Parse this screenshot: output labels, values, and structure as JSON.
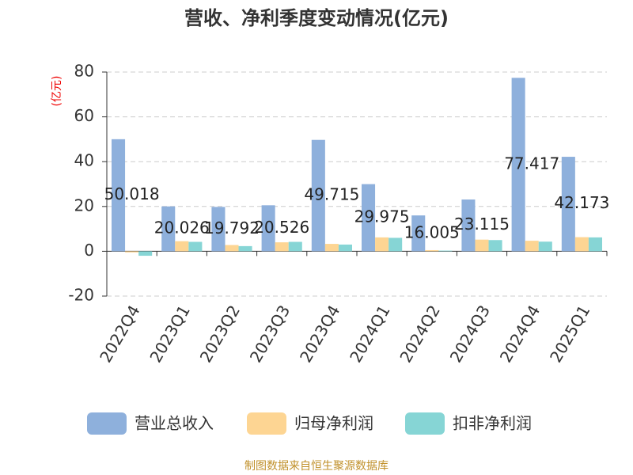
{
  "chart_data": {
    "type": "bar",
    "title": "营收、净利季度变动情况(亿元)",
    "y_unit": "(亿元)",
    "categories": [
      "2022Q4",
      "2023Q1",
      "2023Q2",
      "2023Q3",
      "2023Q4",
      "2024Q1",
      "2024Q2",
      "2024Q3",
      "2024Q4",
      "2025Q1"
    ],
    "series": [
      {
        "name": "营业总收入",
        "color": "#8eb0dc",
        "values": [
          50.018,
          20.026,
          19.792,
          20.526,
          49.715,
          29.975,
          16.005,
          23.115,
          77.417,
          42.173
        ],
        "show_labels": true
      },
      {
        "name": "归母净利润",
        "color": "#fdd593",
        "values": [
          -0.5,
          4.5,
          2.8,
          4.0,
          3.3,
          6.2,
          0.5,
          5.2,
          4.7,
          6.3
        ]
      },
      {
        "name": "扣非净利润",
        "color": "#86d5d5",
        "values": [
          -2.0,
          4.2,
          2.3,
          4.2,
          3.0,
          6.0,
          0.3,
          5.0,
          4.3,
          6.2
        ]
      }
    ],
    "ylim": [
      -20,
      80
    ],
    "yticks": [
      -20,
      0,
      20,
      40,
      60,
      80
    ],
    "grid": true,
    "source": "制图数据来自恒生聚源数据库"
  }
}
